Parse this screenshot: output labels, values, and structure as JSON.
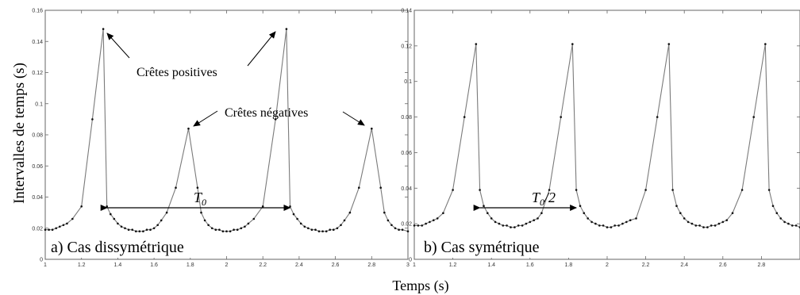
{
  "ylabel": "Intervalles de temps (s)",
  "xlabel": "Temps (s)",
  "chart_data": [
    {
      "type": "line",
      "panel_label": "a) Cas dissymétrique",
      "xlim": [
        1,
        3
      ],
      "ylim": [
        0,
        0.16
      ],
      "xticks": [
        "1",
        "1.2",
        "1.4",
        "1.6",
        "1.8",
        "2",
        "2.2",
        "2.4",
        "2.6",
        "2.8",
        "3"
      ],
      "yticks": [
        "0",
        "0.02",
        "0.04",
        "0.06",
        "0.08",
        "0.1",
        "0.12",
        "0.14",
        "0.16"
      ],
      "annotations": {
        "positive_peaks": "Crêtes positives",
        "negative_peaks": "Crêtes négatives",
        "period": "T0"
      },
      "period_range": [
        1.34,
        2.35
      ],
      "x": [
        1.0,
        1.02,
        1.04,
        1.06,
        1.08,
        1.1,
        1.12,
        1.15,
        1.2,
        1.26,
        1.32,
        1.34,
        1.36,
        1.38,
        1.4,
        1.42,
        1.44,
        1.46,
        1.48,
        1.5,
        1.52,
        1.54,
        1.56,
        1.58,
        1.6,
        1.62,
        1.64,
        1.67,
        1.72,
        1.79,
        1.84,
        1.86,
        1.88,
        1.9,
        1.92,
        1.94,
        1.96,
        1.98,
        2.0,
        2.02,
        2.04,
        2.06,
        2.08,
        2.1,
        2.12,
        2.15,
        2.2,
        2.27,
        2.33,
        2.35,
        2.37,
        2.39,
        2.41,
        2.43,
        2.45,
        2.47,
        2.49,
        2.51,
        2.53,
        2.55,
        2.57,
        2.59,
        2.61,
        2.63,
        2.65,
        2.68,
        2.73,
        2.8,
        2.85,
        2.87,
        2.89,
        2.91,
        2.93,
        2.95,
        2.97,
        3.0
      ],
      "y": [
        0.019,
        0.019,
        0.019,
        0.02,
        0.021,
        0.022,
        0.023,
        0.026,
        0.034,
        0.09,
        0.148,
        0.034,
        0.029,
        0.026,
        0.023,
        0.021,
        0.02,
        0.019,
        0.019,
        0.018,
        0.018,
        0.018,
        0.019,
        0.019,
        0.02,
        0.022,
        0.025,
        0.03,
        0.046,
        0.084,
        0.046,
        0.03,
        0.025,
        0.022,
        0.02,
        0.019,
        0.019,
        0.018,
        0.018,
        0.018,
        0.019,
        0.019,
        0.02,
        0.021,
        0.023,
        0.026,
        0.034,
        0.09,
        0.148,
        0.034,
        0.029,
        0.026,
        0.023,
        0.021,
        0.02,
        0.019,
        0.019,
        0.018,
        0.018,
        0.018,
        0.019,
        0.019,
        0.02,
        0.022,
        0.025,
        0.03,
        0.046,
        0.084,
        0.046,
        0.03,
        0.025,
        0.022,
        0.02,
        0.019,
        0.019,
        0.018
      ]
    },
    {
      "type": "line",
      "panel_label": "b) Cas symétrique",
      "xlim": [
        1,
        3
      ],
      "ylim": [
        0,
        0.14
      ],
      "xticks": [
        "1",
        "1.2",
        "1.4",
        "1.6",
        "1.8",
        "2",
        "2.2",
        "2.4",
        "2.6",
        "2.8"
      ],
      "yticks": [
        "0",
        "0.02",
        "0.04",
        "0.06",
        "0.08",
        "0.1",
        "0.12",
        "0.14"
      ],
      "annotations": {
        "period": "T0/2"
      },
      "period_range": [
        1.34,
        1.84
      ],
      "x": [
        1.0,
        1.02,
        1.04,
        1.06,
        1.08,
        1.1,
        1.12,
        1.15,
        1.2,
        1.26,
        1.32,
        1.34,
        1.36,
        1.38,
        1.4,
        1.42,
        1.44,
        1.46,
        1.48,
        1.5,
        1.52,
        1.54,
        1.56,
        1.58,
        1.6,
        1.62,
        1.64,
        1.66,
        1.7,
        1.76,
        1.82,
        1.84,
        1.86,
        1.88,
        1.9,
        1.92,
        1.94,
        1.96,
        1.98,
        2.0,
        2.02,
        2.04,
        2.06,
        2.08,
        2.1,
        2.12,
        2.15,
        2.2,
        2.26,
        2.32,
        2.34,
        2.36,
        2.38,
        2.4,
        2.42,
        2.44,
        2.46,
        2.48,
        2.5,
        2.52,
        2.54,
        2.56,
        2.58,
        2.6,
        2.62,
        2.65,
        2.7,
        2.76,
        2.82,
        2.84,
        2.86,
        2.88,
        2.9,
        2.92,
        2.94,
        2.96,
        2.98,
        3.0
      ],
      "y": [
        0.019,
        0.019,
        0.019,
        0.02,
        0.021,
        0.022,
        0.023,
        0.026,
        0.039,
        0.08,
        0.121,
        0.039,
        0.03,
        0.026,
        0.023,
        0.021,
        0.02,
        0.019,
        0.019,
        0.018,
        0.018,
        0.019,
        0.019,
        0.02,
        0.021,
        0.022,
        0.023,
        0.026,
        0.039,
        0.08,
        0.121,
        0.039,
        0.03,
        0.026,
        0.023,
        0.021,
        0.02,
        0.019,
        0.019,
        0.018,
        0.018,
        0.019,
        0.019,
        0.02,
        0.021,
        0.022,
        0.023,
        0.039,
        0.08,
        0.121,
        0.039,
        0.03,
        0.026,
        0.023,
        0.021,
        0.02,
        0.019,
        0.019,
        0.018,
        0.018,
        0.019,
        0.019,
        0.02,
        0.021,
        0.022,
        0.026,
        0.039,
        0.08,
        0.121,
        0.039,
        0.03,
        0.026,
        0.023,
        0.021,
        0.02,
        0.019,
        0.019,
        0.018
      ]
    }
  ]
}
